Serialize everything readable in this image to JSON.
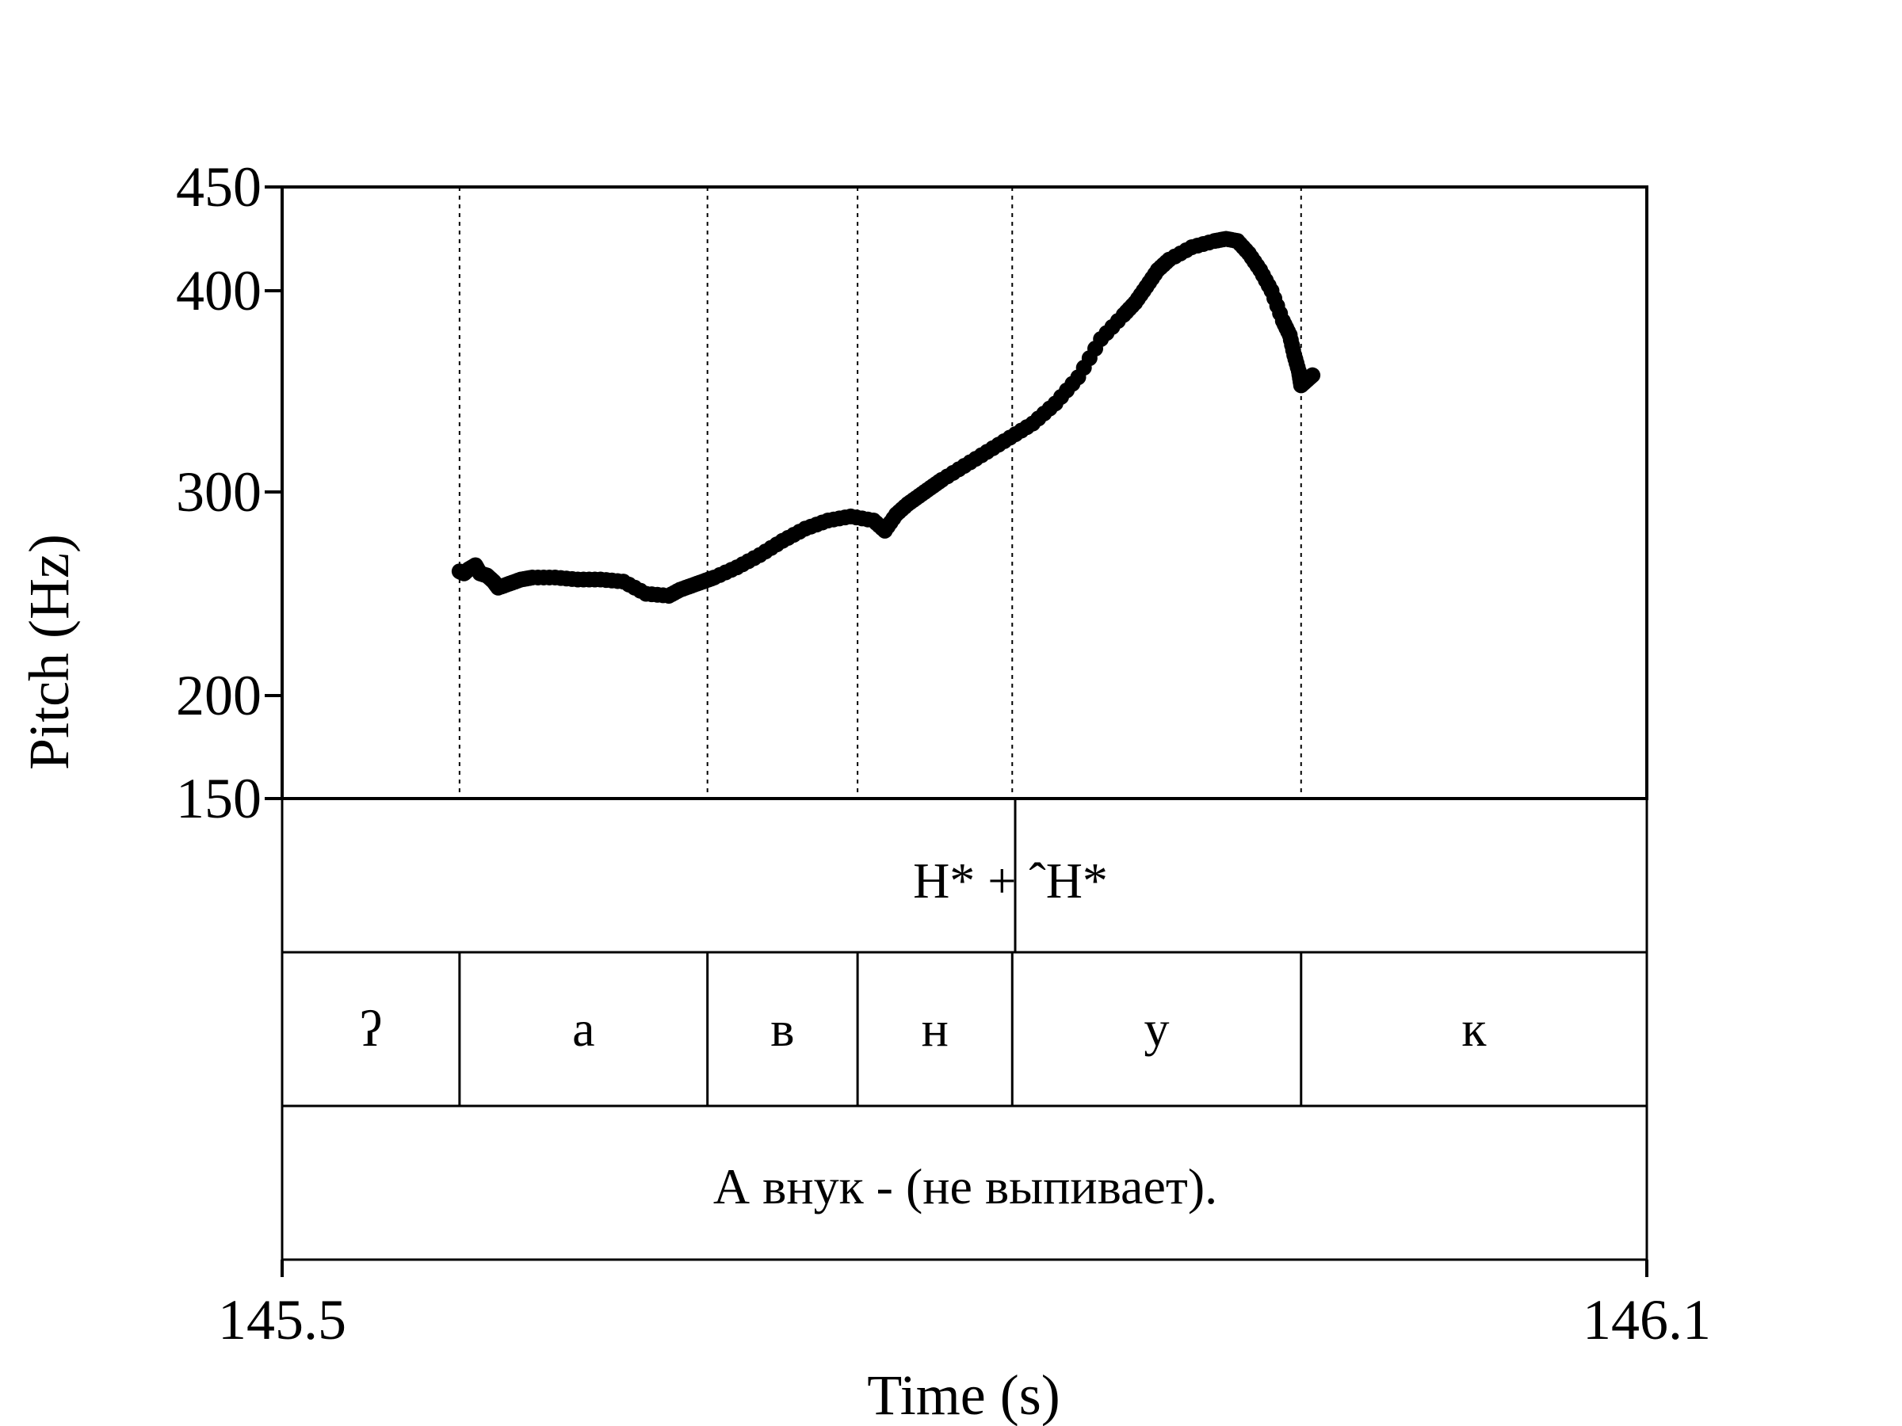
{
  "chart_data": {
    "type": "scatter",
    "title": "",
    "xlabel": "Time (s)",
    "ylabel": "Pitch (Hz)",
    "xlim": [
      145.5,
      146.1
    ],
    "ylim": [
      150,
      450
    ],
    "x_ticks": [
      "145.5",
      "146.1"
    ],
    "y_ticks": [
      150,
      200,
      300,
      400,
      450
    ],
    "y_tick_labels": [
      "150",
      "200",
      "300",
      "400",
      "450"
    ],
    "boundaries": [
      145.578,
      145.687,
      145.753,
      145.821,
      145.948
    ],
    "series": [
      {
        "x": [
          145.578,
          145.58,
          145.582,
          145.585,
          145.587,
          145.59,
          145.593,
          145.595,
          145.6,
          145.605,
          145.61,
          145.62,
          145.63,
          145.64,
          145.65,
          145.66,
          145.67,
          145.675,
          145.68,
          145.685,
          145.69,
          145.7,
          145.71,
          145.72,
          145.73,
          145.74,
          145.75,
          145.76,
          145.765,
          145.77,
          145.775,
          145.78,
          145.785,
          145.79,
          145.8,
          145.81,
          145.82,
          145.83,
          145.84,
          145.85,
          145.86,
          145.87,
          145.875,
          145.88,
          145.885,
          145.89,
          145.9,
          145.91,
          145.915,
          145.92,
          145.925,
          145.93,
          145.935,
          145.94,
          145.943,
          145.945,
          145.947,
          145.948,
          145.95,
          145.953
        ],
        "y": [
          261,
          260,
          262,
          264,
          260,
          259,
          256,
          253,
          255,
          257,
          258,
          258,
          257,
          257,
          256,
          250,
          249,
          252,
          254,
          256,
          258,
          263,
          269,
          276,
          282,
          286,
          288,
          286,
          281,
          289,
          294,
          298,
          302,
          306,
          313,
          320,
          327,
          334,
          344,
          357,
          376,
          388,
          394,
          402,
          410,
          415,
          421,
          424,
          425,
          424,
          418,
          410,
          400,
          385,
          378,
          368,
          360,
          353,
          355,
          358
        ]
      }
    ]
  },
  "tiers": {
    "tone": {
      "label": "H* + ˆH*"
    },
    "segments": [
      "ʔ",
      "а",
      "в",
      "н",
      "у",
      "к"
    ],
    "sentence": "А внук - (не выпивает)."
  }
}
